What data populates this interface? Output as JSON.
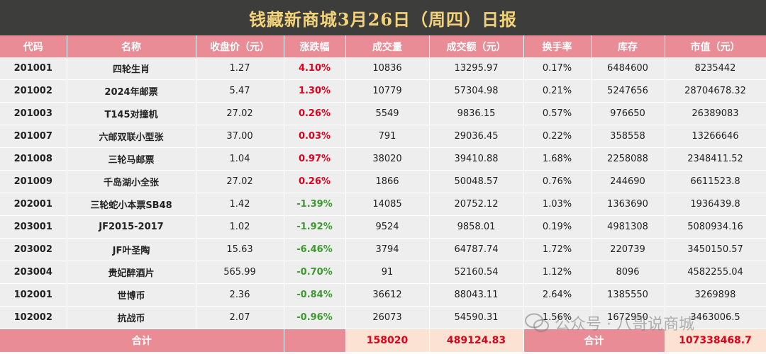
{
  "title": "钱藏新商城3月26日（周四）日报",
  "headers": [
    "代码",
    "名称",
    "收盘价（元）",
    "涨跌幅",
    "成交量",
    "成交额（元）",
    "换手率",
    "库存",
    "市值（元）"
  ],
  "rows": [
    {
      "code": "201001",
      "name": "四轮生肖",
      "close": "1.27",
      "change": "4.10%",
      "dir": "up",
      "volume": "10836",
      "amount": "13295.97",
      "turnover": "0.17%",
      "stock": "6484600",
      "mcap": "8235442"
    },
    {
      "code": "201002",
      "name": "2024年邮票",
      "close": "5.47",
      "change": "1.30%",
      "dir": "up",
      "volume": "10779",
      "amount": "57304.98",
      "turnover": "0.21%",
      "stock": "5247656",
      "mcap": "28704678.32"
    },
    {
      "code": "201003",
      "name": "T145对撞机",
      "close": "27.02",
      "change": "0.26%",
      "dir": "up",
      "volume": "5549",
      "amount": "9836.15",
      "turnover": "0.57%",
      "stock": "976650",
      "mcap": "26389083"
    },
    {
      "code": "201007",
      "name": "六邮双联小型张",
      "close": "37.00",
      "change": "0.03%",
      "dir": "up",
      "volume": "791",
      "amount": "29036.45",
      "turnover": "0.22%",
      "stock": "358558",
      "mcap": "13266646"
    },
    {
      "code": "201008",
      "name": "三轮马邮票",
      "close": "1.04",
      "change": "0.97%",
      "dir": "up",
      "volume": "38020",
      "amount": "39410.88",
      "turnover": "1.68%",
      "stock": "2258088",
      "mcap": "2348411.52"
    },
    {
      "code": "201009",
      "name": "千岛湖小全张",
      "close": "27.02",
      "change": "0.26%",
      "dir": "up",
      "volume": "1866",
      "amount": "50048.57",
      "turnover": "0.76%",
      "stock": "244690",
      "mcap": "6611523.8"
    },
    {
      "code": "202001",
      "name": "三轮蛇小本票SB48",
      "close": "1.42",
      "change": "-1.39%",
      "dir": "down",
      "volume": "14085",
      "amount": "20752.12",
      "turnover": "1.03%",
      "stock": "1363690",
      "mcap": "1936439.8"
    },
    {
      "code": "203001",
      "name": "JF2015-2017",
      "close": "1.02",
      "change": "-1.92%",
      "dir": "down",
      "volume": "9524",
      "amount": "9858.01",
      "turnover": "0.19%",
      "stock": "4981308",
      "mcap": "5080934.16"
    },
    {
      "code": "203002",
      "name": "JF叶圣陶",
      "close": "15.63",
      "change": "-6.46%",
      "dir": "down",
      "volume": "3794",
      "amount": "64787.74",
      "turnover": "1.72%",
      "stock": "220739",
      "mcap": "3450150.57"
    },
    {
      "code": "203004",
      "name": "贵妃醉酒片",
      "close": "565.99",
      "change": "-0.70%",
      "dir": "down",
      "volume": "91",
      "amount": "52160.54",
      "turnover": "1.12%",
      "stock": "8096",
      "mcap": "4582255.04"
    },
    {
      "code": "102001",
      "name": "世博币",
      "close": "2.36",
      "change": "-0.84%",
      "dir": "down",
      "volume": "36612",
      "amount": "88043.11",
      "turnover": "2.64%",
      "stock": "1385550",
      "mcap": "3269898"
    },
    {
      "code": "102002",
      "name": "抗战币",
      "close": "2.07",
      "change": "-0.96%",
      "dir": "down",
      "volume": "26073",
      "amount": "54590.31",
      "turnover": "1.56%",
      "stock": "1672950",
      "mcap": "3463006.5"
    }
  ],
  "total": {
    "label1": "合计",
    "volume": "158020",
    "amount": "489124.83",
    "label2": "合计",
    "mcap": "107338468.7"
  },
  "watermark": "公众号 · 八哥说商城",
  "colors": {
    "header_bg": "#ea8c95",
    "title_bg": "#3d3d3b",
    "title_text": "#f3d37a",
    "up": "#e0001b",
    "down": "#3c9a2e"
  }
}
